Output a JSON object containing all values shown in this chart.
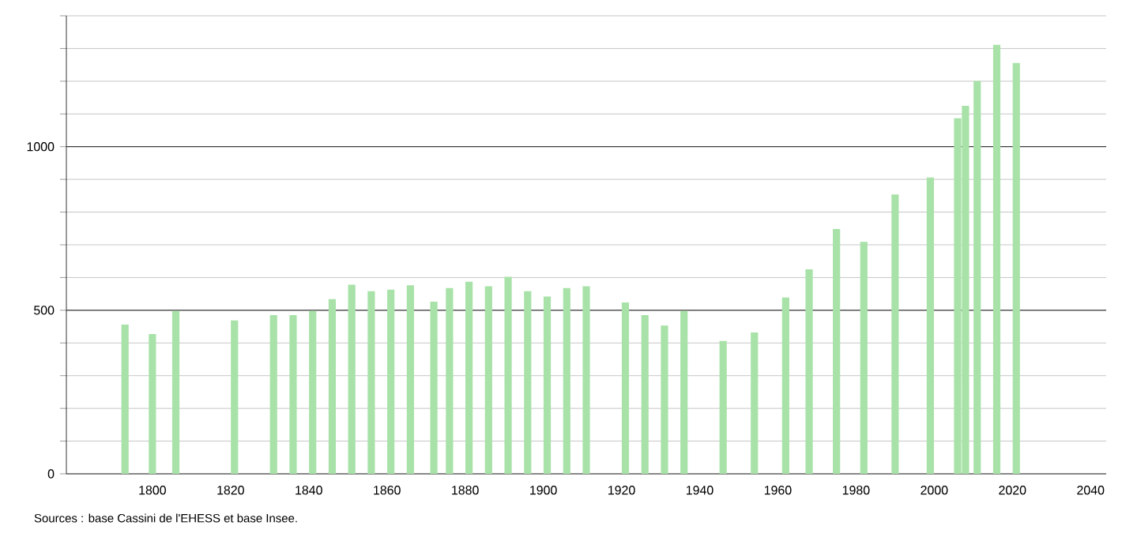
{
  "chart_data": {
    "type": "bar",
    "color": "#a8e2a8",
    "x": [
      1793,
      1800,
      1806,
      1821,
      1831,
      1836,
      1841,
      1846,
      1851,
      1856,
      1861,
      1866,
      1872,
      1876,
      1881,
      1886,
      1891,
      1896,
      1901,
      1906,
      1911,
      1921,
      1926,
      1931,
      1936,
      1946,
      1954,
      1962,
      1968,
      1975,
      1982,
      1990,
      1999,
      2006,
      2008,
      2011,
      2016,
      2021
    ],
    "values": [
      456,
      427,
      498,
      469,
      485,
      485,
      498,
      534,
      578,
      558,
      563,
      576,
      526,
      568,
      587,
      573,
      602,
      558,
      542,
      568,
      573,
      524,
      485,
      453,
      498,
      406,
      432,
      539,
      625,
      748,
      709,
      854,
      906,
      1087,
      1125,
      1201,
      1311,
      1256
    ],
    "xlim": [
      1778,
      2044
    ],
    "xticks": [
      1800,
      1820,
      1840,
      1860,
      1880,
      1900,
      1920,
      1940,
      1960,
      1980,
      2000,
      2020,
      2040
    ],
    "ylim": [
      0,
      1400
    ],
    "yticks": [
      0,
      {
        "value": 100,
        "label": null
      },
      {
        "value": 200,
        "label": null
      },
      {
        "value": 300,
        "label": null
      },
      {
        "value": 400,
        "label": null
      },
      500,
      {
        "value": 600,
        "label": null
      },
      {
        "value": 700,
        "label": null
      },
      {
        "value": 800,
        "label": null
      },
      {
        "value": 900,
        "label": null
      },
      1000,
      {
        "value": 1100,
        "label": null
      },
      {
        "value": 1200,
        "label": null
      },
      {
        "value": 1300,
        "label": null
      },
      {
        "value": 1400,
        "label": null
      }
    ],
    "grid": "y",
    "annotations": [
      "Sources : base Cassini de l'EHESS et base Insee."
    ]
  }
}
